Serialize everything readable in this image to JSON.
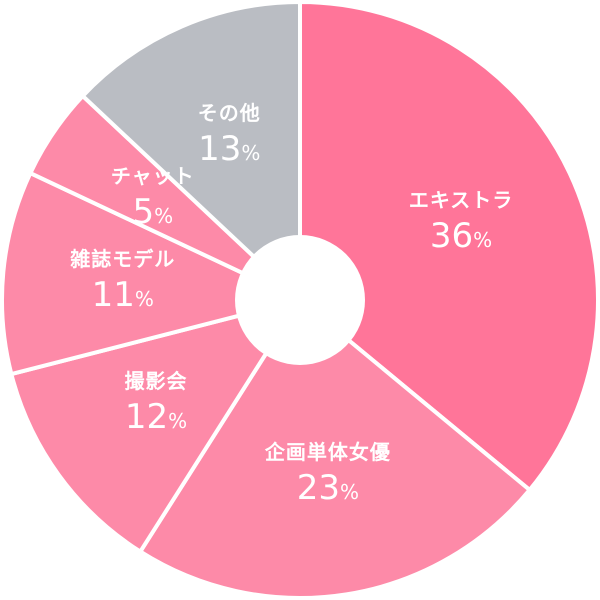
{
  "chart_data": {
    "type": "pie",
    "donut": true,
    "start": "top",
    "direction": "clockwise",
    "legend": "none",
    "unit": "%",
    "slices": [
      {
        "label": "エキストラ",
        "value": 36,
        "color": "#ff7599"
      },
      {
        "label": "企画単体女優",
        "value": 23,
        "color": "#fd8aa8"
      },
      {
        "label": "撮影会",
        "value": 12,
        "color": "#fd8aa8"
      },
      {
        "label": "雑誌モデル",
        "value": 11,
        "color": "#fd8aa8"
      },
      {
        "label": "チャット",
        "value": 5,
        "color": "#fd8aa8"
      },
      {
        "label": "その他",
        "value": 13,
        "color": "#babdc3"
      }
    ]
  }
}
